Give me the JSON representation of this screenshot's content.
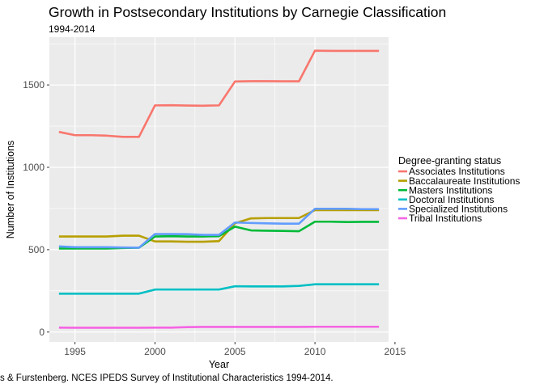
{
  "chart_data": {
    "type": "line",
    "title": "Growth in Postsecondary Institutions by Carnegie Classification",
    "subtitle": "1994-2014",
    "xlabel": "Year",
    "ylabel": "Number of Institutions",
    "xlim": [
      1993.4,
      2014.6
    ],
    "ylim": [
      -60,
      1790
    ],
    "x_ticks": [
      1995,
      2000,
      2005,
      2010,
      2015
    ],
    "x_tick_labels": [
      "1995",
      "2000",
      "2005",
      "2010",
      "2015"
    ],
    "y_ticks": [
      0,
      500,
      1000,
      1500
    ],
    "y_tick_labels": [
      "0",
      "500",
      "1000",
      "1500"
    ],
    "grid": true,
    "legend_title": "Degree-granting status",
    "legend_position": "right",
    "caption": "s & Furstenberg. NCES IPEDS Survey of Institutional Characteristics 1994-2014.",
    "x": [
      1994,
      1995,
      1996,
      1997,
      1998,
      1999,
      2000,
      2001,
      2002,
      2003,
      2004,
      2005,
      2006,
      2007,
      2008,
      2009,
      2010,
      2011,
      2012,
      2013,
      2014
    ],
    "series": [
      {
        "name": "Associates Institutions",
        "color": "#F8766D",
        "values": [
          1215,
          1195,
          1195,
          1192,
          1185,
          1185,
          1376,
          1377,
          1375,
          1374,
          1376,
          1521,
          1523,
          1523,
          1522,
          1522,
          1708,
          1707,
          1707,
          1707,
          1707
        ]
      },
      {
        "name": "Baccalaureate Institutions",
        "color": "#B79F00",
        "values": [
          580,
          580,
          580,
          580,
          585,
          585,
          550,
          550,
          548,
          548,
          552,
          660,
          690,
          692,
          692,
          692,
          740,
          740,
          740,
          740,
          740
        ]
      },
      {
        "name": "Masters Institutions",
        "color": "#00BA38",
        "values": [
          507,
          507,
          507,
          507,
          510,
          512,
          580,
          582,
          580,
          580,
          582,
          640,
          617,
          615,
          614,
          612,
          670,
          670,
          668,
          669,
          669
        ]
      },
      {
        "name": "Doctoral Institutions",
        "color": "#00BFC4",
        "values": [
          233,
          233,
          233,
          233,
          233,
          233,
          258,
          258,
          258,
          258,
          258,
          278,
          277,
          277,
          277,
          280,
          290,
          290,
          290,
          290,
          290
        ]
      },
      {
        "name": "Specialized Institutions",
        "color": "#619CFF",
        "values": [
          520,
          515,
          515,
          515,
          513,
          512,
          595,
          595,
          594,
          590,
          590,
          665,
          662,
          660,
          658,
          658,
          748,
          748,
          748,
          746,
          746
        ]
      },
      {
        "name": "Tribal Institutions",
        "color": "#F564E3",
        "values": [
          27,
          26,
          26,
          26,
          26,
          26,
          27,
          27,
          30,
          31,
          31,
          31,
          31,
          31,
          31,
          31,
          32,
          32,
          32,
          32,
          32
        ]
      }
    ]
  }
}
